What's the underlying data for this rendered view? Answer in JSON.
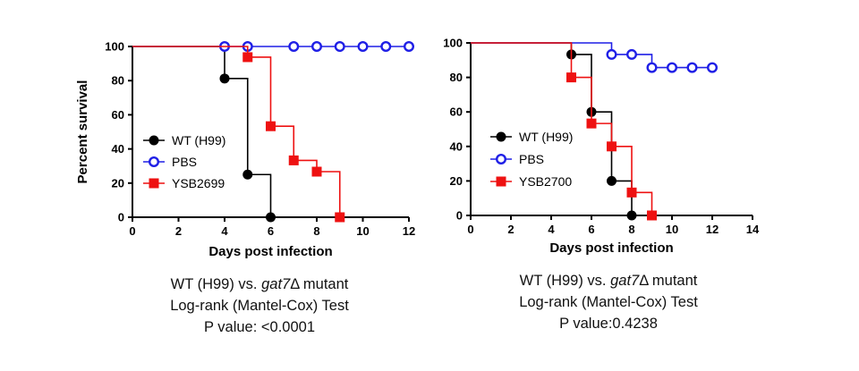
{
  "chart_data": [
    {
      "type": "line",
      "step": true,
      "ylabel": "Percent survival",
      "xlabel": "Days post infection",
      "xlim": [
        0,
        12
      ],
      "ylim": [
        0,
        100
      ],
      "xticks": [
        "0",
        "2",
        "4",
        "6",
        "8",
        "10",
        "12"
      ],
      "yticks": [
        "0",
        "20",
        "40",
        "60",
        "80",
        "100"
      ],
      "legend": "left-middle",
      "series": [
        {
          "name": "WT (H99)",
          "color": "#000000",
          "marker": "filled-circle",
          "x": [
            0,
            4,
            5,
            6
          ],
          "y": [
            100,
            81.25,
            25,
            0
          ],
          "markers": {
            "x": [
              4,
              5,
              6
            ],
            "y": [
              81.25,
              25,
              0
            ]
          }
        },
        {
          "name": "PBS",
          "color": "#1f1fe6",
          "marker": "open-circle",
          "x": [
            0,
            12
          ],
          "y": [
            100,
            100
          ],
          "markers": {
            "x": [
              4,
              5,
              7,
              8,
              9,
              10,
              11,
              12
            ],
            "y": [
              100,
              100,
              100,
              100,
              100,
              100,
              100,
              100
            ]
          }
        },
        {
          "name": "YSB2699",
          "color": "#ee1111",
          "marker": "filled-square",
          "x": [
            0,
            5,
            6,
            7,
            8,
            9
          ],
          "y": [
            100,
            93.75,
            53.3,
            33.3,
            26.7,
            0
          ],
          "markers": {
            "x": [
              5,
              6,
              7,
              8,
              9
            ],
            "y": [
              93.75,
              53.3,
              33.3,
              26.7,
              0
            ]
          }
        }
      ],
      "caption": {
        "line1_pre": "WT (H99) vs. ",
        "line1_gene": "gat7",
        "line1_post": "Δ mutant",
        "line2": "Log-rank (Mantel-Cox) Test",
        "line3": "P value: <0.0001"
      }
    },
    {
      "type": "line",
      "step": true,
      "ylabel": "",
      "xlabel": "Days post infection",
      "xlim": [
        0,
        14
      ],
      "ylim": [
        0,
        100
      ],
      "xticks": [
        "0",
        "2",
        "4",
        "6",
        "8",
        "10",
        "12",
        "14"
      ],
      "yticks": [
        "0",
        "20",
        "40",
        "60",
        "80",
        "100"
      ],
      "legend": "left-middle",
      "series": [
        {
          "name": "WT (H99)",
          "color": "#000000",
          "marker": "filled-circle",
          "x": [
            0,
            5,
            6,
            7,
            8
          ],
          "y": [
            100,
            93.3,
            60,
            20,
            0
          ],
          "markers": {
            "x": [
              5,
              6,
              7,
              8
            ],
            "y": [
              93.3,
              60,
              20,
              0
            ]
          }
        },
        {
          "name": "PBS",
          "color": "#1f1fe6",
          "marker": "open-circle",
          "x": [
            0,
            6,
            7,
            9,
            12
          ],
          "y": [
            100,
            100,
            93.3,
            85.7,
            85.7
          ],
          "markers": {
            "x": [
              7,
              8,
              9,
              10,
              11,
              12
            ],
            "y": [
              93.3,
              93.3,
              85.7,
              85.7,
              85.7,
              85.7
            ]
          }
        },
        {
          "name": "YSB2700",
          "color": "#ee1111",
          "marker": "filled-square",
          "x": [
            0,
            5,
            6,
            7,
            8,
            9
          ],
          "y": [
            100,
            80,
            53.3,
            40,
            13.3,
            0
          ],
          "markers": {
            "x": [
              5,
              6,
              7,
              8,
              9
            ],
            "y": [
              80,
              53.3,
              40,
              13.3,
              0
            ]
          }
        }
      ],
      "caption": {
        "line1_pre": "WT (H99) vs. ",
        "line1_gene": "gat7",
        "line1_post": "Δ mutant",
        "line2": "Log-rank (Mantel-Cox) Test",
        "line3": "P value:0.4238"
      }
    }
  ]
}
